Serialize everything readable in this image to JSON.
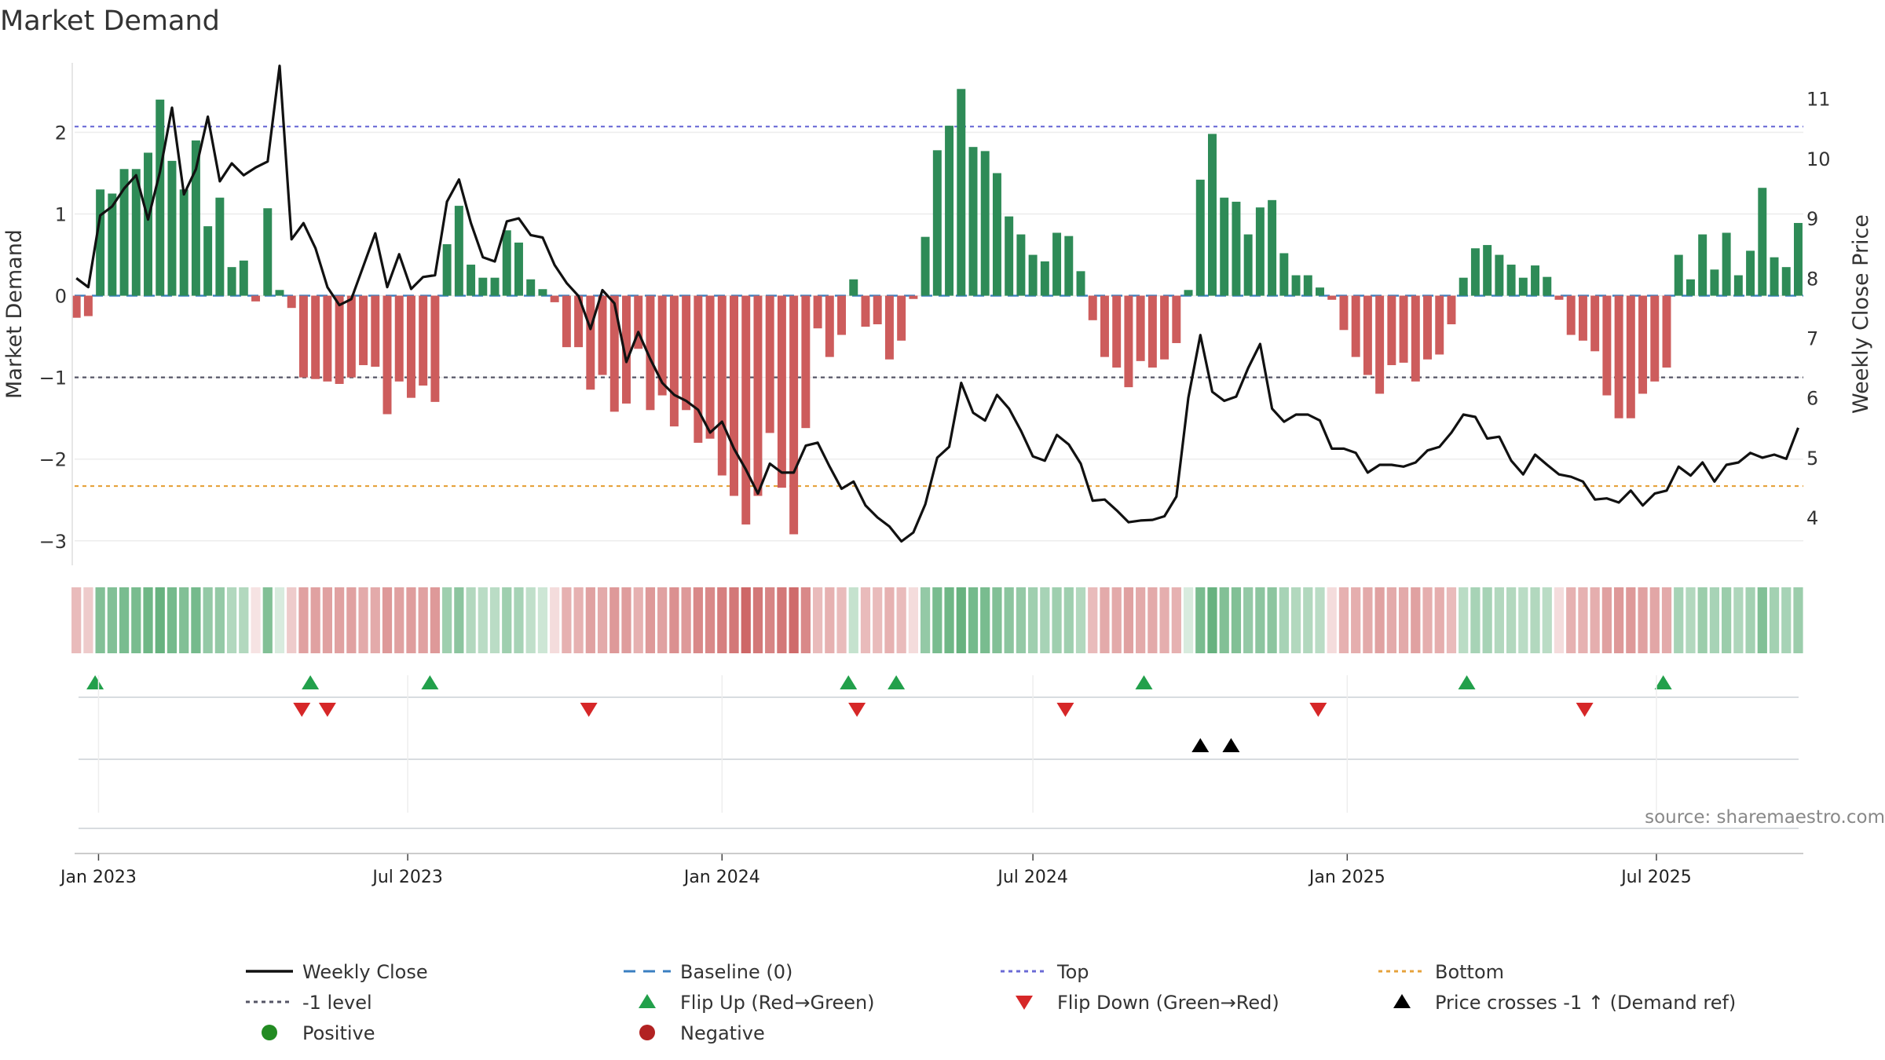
{
  "chart_data": {
    "type": "bar",
    "title": "Market Demand",
    "ylabel": "Market Demand",
    "y2label": "Weekly Close Price",
    "source": "source: sharemaestro.com",
    "ylim": [
      -3.3,
      2.85
    ],
    "y2lim": [
      3.2,
      11.6
    ],
    "yticks": [
      -3,
      -2,
      -1,
      0,
      1,
      2
    ],
    "yticklabels": [
      "−3",
      "−2",
      "−1",
      "0",
      "1",
      "2"
    ],
    "y2ticks": [
      4,
      5,
      6,
      7,
      8,
      9,
      10,
      11
    ],
    "y2ticklabels": [
      "4",
      "5",
      "6",
      "7",
      "8",
      "9",
      "10",
      "11"
    ],
    "xlim": [
      "2022-12-18",
      "2025-09-25"
    ],
    "xticks": [
      "2023-01-01",
      "2023-07-01",
      "2024-01-01",
      "2024-07-01",
      "2025-01-01",
      "2025-07-01"
    ],
    "xticklabels": [
      "Jan 2023",
      "Jul 2023",
      "Jan 2024",
      "Jul 2024",
      "Jan 2025",
      "Jul 2025"
    ],
    "start_week": "2022-12-19",
    "levels": {
      "top": 2.07,
      "bottom": -2.33,
      "minus_one": -1,
      "baseline": 0
    },
    "colors": {
      "positive": "#2e8b57",
      "negative": "#cd5c5c",
      "price": "#111111",
      "top": "#6b6bd6",
      "bottom": "#e6a23c",
      "minus_one": "#555566",
      "baseline": "#3a7fc1",
      "flip_up": "#22a04b",
      "flip_down": "#d62728",
      "cross": "#000000"
    },
    "demand": [
      -0.27,
      -0.25,
      1.3,
      1.25,
      1.55,
      1.55,
      1.75,
      2.4,
      1.65,
      1.3,
      1.9,
      0.85,
      1.2,
      0.35,
      0.43,
      -0.07,
      1.07,
      0.07,
      -0.15,
      -1.0,
      -1.02,
      -1.05,
      -1.08,
      -1.0,
      -0.85,
      -0.87,
      -1.45,
      -1.05,
      -1.25,
      -1.1,
      -1.3,
      0.63,
      1.1,
      0.38,
      0.22,
      0.22,
      0.8,
      0.65,
      0.2,
      0.08,
      -0.08,
      -0.63,
      -0.63,
      -1.15,
      -0.97,
      -1.42,
      -1.32,
      -0.65,
      -1.4,
      -1.22,
      -1.6,
      -1.4,
      -1.8,
      -1.75,
      -2.2,
      -2.45,
      -2.8,
      -2.45,
      -1.68,
      -2.35,
      -2.92,
      -1.62,
      -0.4,
      -0.75,
      -0.48,
      0.2,
      -0.38,
      -0.35,
      -0.78,
      -0.55,
      -0.04,
      0.72,
      1.78,
      2.08,
      2.53,
      1.82,
      1.77,
      1.5,
      0.97,
      0.75,
      0.5,
      0.42,
      0.77,
      0.73,
      0.3,
      -0.3,
      -0.75,
      -0.88,
      -1.12,
      -0.8,
      -0.88,
      -0.78,
      -0.58,
      0.07,
      1.42,
      1.98,
      1.2,
      1.15,
      0.75,
      1.08,
      1.17,
      0.52,
      0.25,
      0.25,
      0.1,
      -0.05,
      -0.42,
      -0.75,
      -0.97,
      -1.2,
      -0.85,
      -0.82,
      -1.05,
      -0.78,
      -0.72,
      -0.35,
      0.22,
      0.58,
      0.62,
      0.5,
      0.38,
      0.22,
      0.37,
      0.23,
      -0.05,
      -0.48,
      -0.55,
      -0.68,
      -1.22,
      -1.5,
      -1.5,
      -1.2,
      -1.05,
      -0.88,
      0.5,
      0.2,
      0.75,
      0.32,
      0.77,
      0.25,
      0.55,
      1.32,
      0.47,
      0.35,
      0.89
    ],
    "price": [
      8.0,
      7.85,
      9.05,
      9.2,
      9.5,
      9.72,
      8.98,
      9.78,
      10.85,
      9.4,
      9.82,
      10.7,
      9.62,
      9.92,
      9.72,
      9.85,
      9.95,
      11.55,
      8.65,
      8.92,
      8.5,
      7.85,
      7.55,
      7.65,
      8.2,
      8.75,
      7.85,
      8.4,
      7.82,
      8.02,
      8.05,
      9.28,
      9.65,
      8.92,
      8.35,
      8.28,
      8.95,
      9.0,
      8.72,
      8.68,
      8.22,
      7.92,
      7.7,
      7.15,
      7.8,
      7.58,
      6.6,
      7.1,
      6.65,
      6.25,
      6.05,
      5.95,
      5.8,
      5.42,
      5.6,
      5.15,
      4.8,
      4.4,
      4.9,
      4.75,
      4.75,
      5.2,
      5.25,
      4.85,
      4.48,
      4.6,
      4.2,
      4.0,
      3.85,
      3.6,
      3.75,
      4.22,
      5.0,
      5.18,
      6.25,
      5.75,
      5.62,
      6.05,
      5.82,
      5.45,
      5.02,
      4.95,
      5.38,
      5.22,
      4.9,
      4.28,
      4.3,
      4.12,
      3.92,
      3.95,
      3.96,
      4.02,
      4.35,
      6.0,
      7.05,
      6.1,
      5.95,
      6.02,
      6.5,
      6.9,
      5.82,
      5.6,
      5.72,
      5.72,
      5.62,
      5.15,
      5.15,
      5.08,
      4.75,
      4.88,
      4.88,
      4.85,
      4.92,
      5.12,
      5.18,
      5.42,
      5.72,
      5.68,
      5.32,
      5.35,
      4.95,
      4.72,
      5.05,
      4.88,
      4.72,
      4.68,
      4.6,
      4.3,
      4.32,
      4.25,
      4.45,
      4.2,
      4.4,
      4.45,
      4.85,
      4.7,
      4.92,
      4.6,
      4.88,
      4.92,
      5.08,
      5.0,
      5.05,
      4.98,
      5.5
    ],
    "color_strip": [
      -0.3,
      -0.2,
      0.55,
      0.55,
      0.6,
      0.6,
      0.65,
      0.7,
      0.62,
      0.55,
      0.62,
      0.45,
      0.45,
      0.3,
      0.3,
      -0.05,
      0.55,
      0.1,
      -0.2,
      -0.45,
      -0.45,
      -0.45,
      -0.45,
      -0.45,
      -0.4,
      -0.4,
      -0.5,
      -0.45,
      -0.48,
      -0.45,
      -0.5,
      0.4,
      0.5,
      0.3,
      0.25,
      0.25,
      0.4,
      0.35,
      0.22,
      0.15,
      -0.1,
      -0.35,
      -0.35,
      -0.45,
      -0.4,
      -0.5,
      -0.48,
      -0.35,
      -0.5,
      -0.45,
      -0.55,
      -0.5,
      -0.6,
      -0.6,
      -0.65,
      -0.7,
      -0.8,
      -0.7,
      -0.62,
      -0.7,
      -0.78,
      -0.6,
      -0.3,
      -0.35,
      -0.3,
      0.2,
      -0.3,
      -0.3,
      -0.35,
      -0.3,
      -0.1,
      0.45,
      0.6,
      0.65,
      0.7,
      0.62,
      0.6,
      0.55,
      0.5,
      0.45,
      0.4,
      0.35,
      0.4,
      0.4,
      0.3,
      -0.3,
      -0.4,
      -0.4,
      -0.45,
      -0.4,
      -0.4,
      -0.38,
      -0.35,
      0.1,
      0.6,
      0.7,
      0.55,
      0.55,
      0.45,
      0.5,
      0.5,
      0.35,
      0.3,
      0.3,
      0.25,
      -0.1,
      -0.35,
      -0.38,
      -0.4,
      -0.45,
      -0.4,
      -0.4,
      -0.45,
      -0.38,
      -0.38,
      -0.3,
      0.25,
      0.35,
      0.35,
      0.3,
      0.3,
      0.25,
      0.3,
      0.25,
      -0.1,
      -0.35,
      -0.35,
      -0.38,
      -0.45,
      -0.5,
      -0.5,
      -0.45,
      -0.42,
      -0.4,
      0.35,
      0.3,
      0.42,
      0.35,
      0.42,
      0.32,
      0.38,
      0.55,
      0.38,
      0.35,
      0.42
    ],
    "flip_up": [
      "2022-12-30",
      "2023-05-05",
      "2023-07-14",
      "2024-03-15",
      "2024-04-12",
      "2024-09-04",
      "2025-03-12",
      "2025-07-05"
    ],
    "flip_down": [
      "2023-04-30",
      "2023-05-15",
      "2023-10-15",
      "2024-03-20",
      "2024-07-20",
      "2024-12-15",
      "2025-05-20"
    ],
    "price_cross": [
      "2024-10-07",
      "2024-10-25"
    ],
    "legend": [
      {
        "label": "Weekly Close",
        "symbol": "line",
        "color": "#111111"
      },
      {
        "label": "Baseline (0)",
        "symbol": "dash",
        "color": "#3a7fc1"
      },
      {
        "label": "Top",
        "symbol": "dot",
        "color": "#6b6bd6"
      },
      {
        "label": "Bottom",
        "symbol": "dot",
        "color": "#e6a23c"
      },
      {
        "label": "-1 level",
        "symbol": "dot",
        "color": "#555566"
      },
      {
        "label": "Flip Up (Red→Green)",
        "symbol": "tri-up",
        "color": "#22a04b"
      },
      {
        "label": "Flip Down (Green→Red)",
        "symbol": "tri-down",
        "color": "#d62728"
      },
      {
        "label": "Price crosses -1 ↑ (Demand ref)",
        "symbol": "tri-up",
        "color": "#000000"
      },
      {
        "label": "Positive",
        "symbol": "circle",
        "color": "#228b22"
      },
      {
        "label": "Negative",
        "symbol": "circle",
        "color": "#b22222"
      }
    ]
  }
}
